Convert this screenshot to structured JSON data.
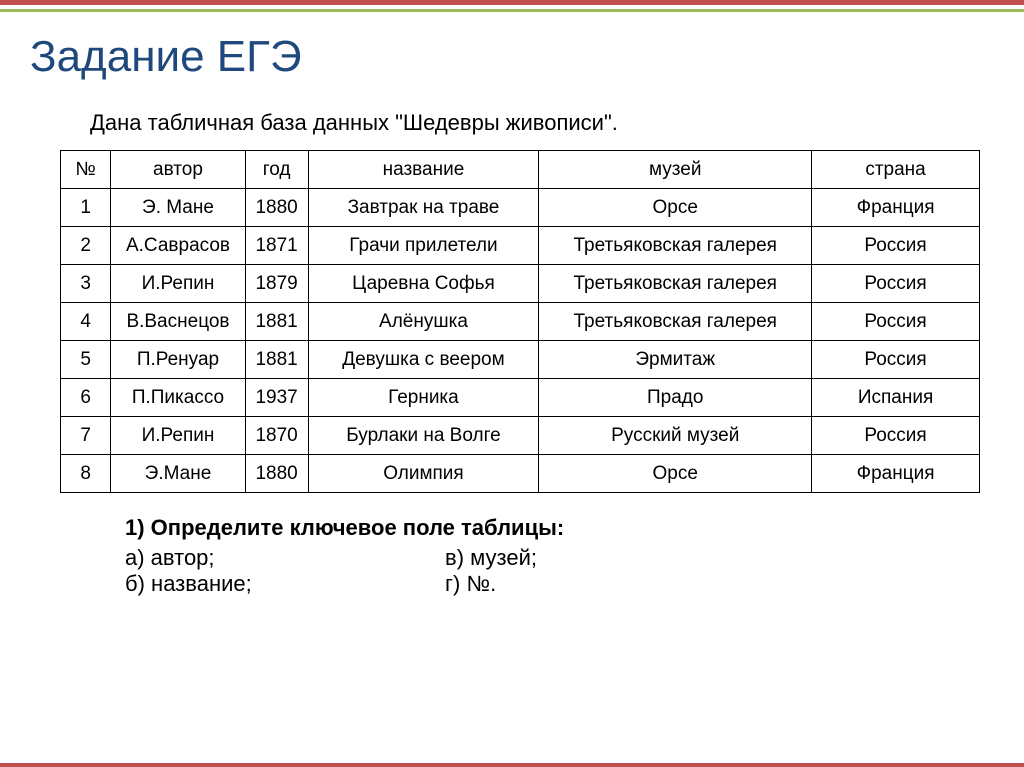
{
  "title": "Задание ЕГЭ",
  "intro": "Дана табличная база данных \"Шедевры живописи\".",
  "table": {
    "columns": [
      "№",
      "автор",
      "год",
      "название",
      "музей",
      "страна"
    ],
    "rows": [
      [
        "1",
        "Э. Мане",
        "1880",
        "Завтрак на траве",
        "Орсе",
        "Франция"
      ],
      [
        "2",
        "А.Саврасов",
        "1871",
        "Грачи прилетели",
        "Третьяковская галерея",
        "Россия"
      ],
      [
        "3",
        "И.Репин",
        "1879",
        "Царевна Софья",
        "Третьяковская галерея",
        "Россия"
      ],
      [
        "4",
        "В.Васнецов",
        "1881",
        "Алёнушка",
        "Третьяковская галерея",
        "Россия"
      ],
      [
        "5",
        "П.Ренуар",
        "1881",
        "Девушка с веером",
        "Эрмитаж",
        "Россия"
      ],
      [
        "6",
        "П.Пикассо",
        "1937",
        "Герника",
        "Прадо",
        "Испания"
      ],
      [
        "7",
        "И.Репин",
        "1870",
        "Бурлаки на Волге",
        "Русский музей",
        "Россия"
      ],
      [
        "8",
        "Э.Мане",
        "1880",
        "Олимпия",
        "Орсе",
        "Франция"
      ]
    ]
  },
  "question": {
    "heading": "1) Определите ключевое поле таблицы:",
    "options": {
      "a": "а) автор;",
      "b": "б) название;",
      "v": "в) музей;",
      "g": "г) №."
    }
  },
  "colors": {
    "title": "#1f497d",
    "accent_red": "#c0504d",
    "accent_green": "#9bbb59",
    "border": "#000000",
    "text": "#000000",
    "background": "#ffffff"
  }
}
